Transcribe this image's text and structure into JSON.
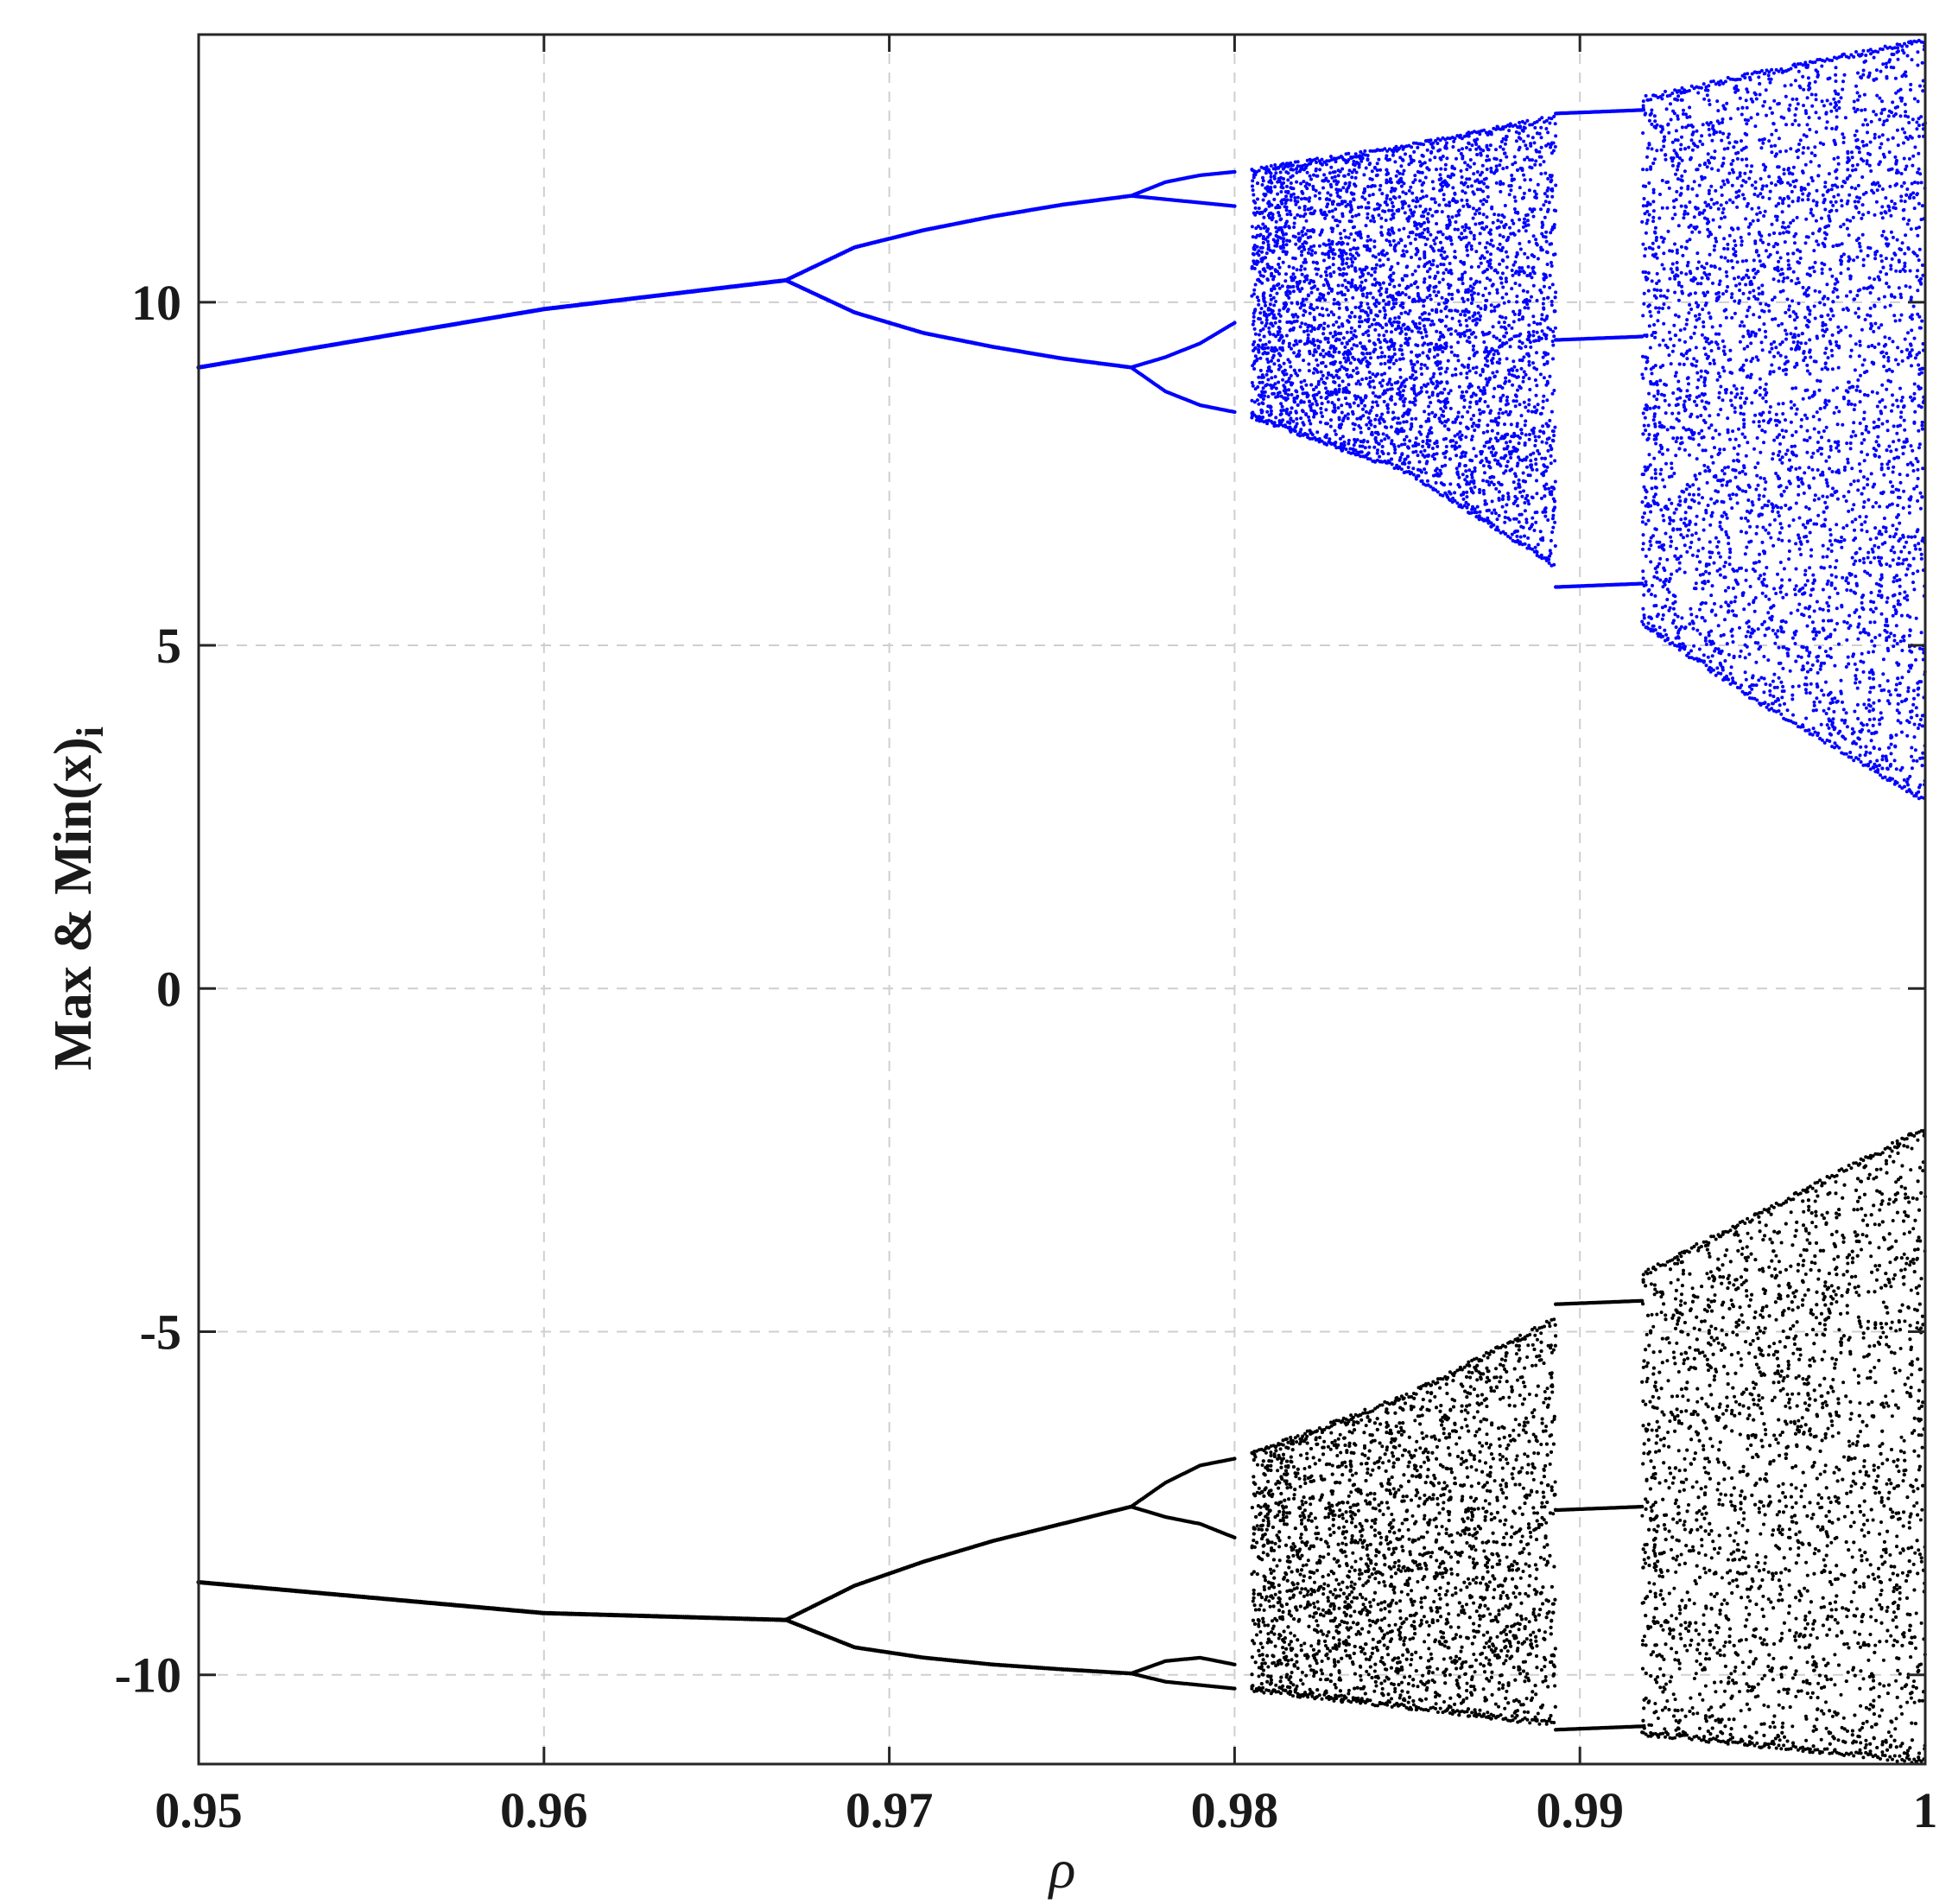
{
  "chart_data": {
    "type": "scatter",
    "title": "",
    "xlabel": "ρ",
    "ylabel": "Max & Min(x)",
    "ylabel_subscript": "i",
    "xlim": [
      0.95,
      1.0
    ],
    "ylim": [
      -11.3,
      13.9
    ],
    "grid": true,
    "x_ticks": [
      0.95,
      0.96,
      0.97,
      0.98,
      0.99,
      1.0
    ],
    "x_tick_labels": [
      "0.95",
      "0.96",
      "0.97",
      "0.98",
      "0.99",
      "1"
    ],
    "y_ticks": [
      -10,
      -5,
      0,
      5,
      10
    ],
    "y_tick_labels": [
      "-10",
      "-5",
      "0",
      "5",
      "10"
    ],
    "series": [
      {
        "role": "maxima",
        "color": "#0000ff",
        "period1": [
          [
            0.95,
            9.05
          ],
          [
            0.96,
            9.9
          ],
          [
            0.967,
            10.32
          ]
        ],
        "period2": {
          "x": [
            0.967,
            0.969,
            0.971,
            0.973,
            0.975,
            0.977
          ],
          "upper": [
            10.32,
            10.8,
            11.05,
            11.25,
            11.42,
            11.55
          ],
          "lower": [
            10.32,
            9.85,
            9.55,
            9.35,
            9.18,
            9.05
          ]
        },
        "period4": {
          "x": [
            0.977,
            0.978,
            0.979,
            0.98
          ],
          "branches": [
            [
              11.55,
              11.75,
              11.85,
              11.9
            ],
            [
              11.55,
              11.5,
              11.45,
              11.4
            ],
            [
              9.05,
              9.2,
              9.4,
              9.7
            ],
            [
              9.05,
              8.7,
              8.5,
              8.4
            ]
          ]
        },
        "chaos_band": {
          "x": [
            0.9805,
            0.985,
            0.99,
            0.995,
            1.0
          ],
          "upper": [
            11.95,
            12.3,
            12.8,
            13.35,
            13.85
          ],
          "lower": [
            8.3,
            7.5,
            5.9,
            4.2,
            2.7
          ]
        },
        "window_period3": {
          "x": [
            0.9893,
            0.9918
          ],
          "levels": [
            12.75,
            9.45,
            5.85
          ]
        }
      },
      {
        "role": "minima",
        "color": "#000000",
        "period1": [
          [
            0.95,
            -8.65
          ],
          [
            0.96,
            -9.1
          ],
          [
            0.967,
            -9.2
          ]
        ],
        "period2": {
          "x": [
            0.967,
            0.969,
            0.971,
            0.973,
            0.975,
            0.977
          ],
          "upper": [
            -9.2,
            -8.7,
            -8.35,
            -8.05,
            -7.8,
            -7.55
          ],
          "lower": [
            -9.2,
            -9.6,
            -9.75,
            -9.85,
            -9.92,
            -9.98
          ]
        },
        "period4": {
          "x": [
            0.977,
            0.978,
            0.979,
            0.98
          ],
          "branches": [
            [
              -7.55,
              -7.2,
              -6.95,
              -6.85
            ],
            [
              -7.55,
              -7.7,
              -7.8,
              -8.0
            ],
            [
              -9.98,
              -9.8,
              -9.75,
              -9.85
            ],
            [
              -9.98,
              -10.1,
              -10.15,
              -10.2
            ]
          ]
        },
        "chaos_band": {
          "x": [
            0.9805,
            0.985,
            0.99,
            0.995,
            1.0
          ],
          "upper": [
            -6.75,
            -5.9,
            -4.6,
            -3.3,
            -2.0
          ],
          "lower": [
            -10.25,
            -10.5,
            -10.8,
            -11.05,
            -11.3
          ]
        },
        "window_period3": {
          "x": [
            0.9893,
            0.9918
          ],
          "levels": [
            -4.6,
            -7.6,
            -10.8
          ]
        }
      }
    ]
  }
}
